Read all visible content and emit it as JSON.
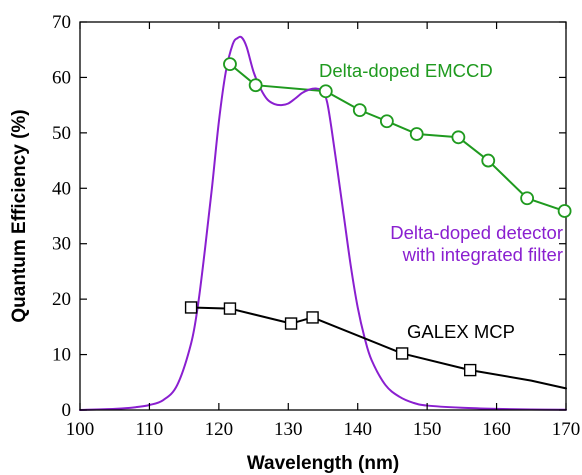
{
  "chart_data": {
    "type": "line",
    "xlabel": "Wavelength (nm)",
    "ylabel": "Quantum Efficiency (%)",
    "xlim": [
      100,
      170
    ],
    "ylim": [
      0,
      70
    ],
    "x_ticks": [
      100,
      110,
      120,
      130,
      140,
      150,
      160,
      170
    ],
    "y_ticks": [
      0,
      10,
      20,
      30,
      40,
      50,
      60,
      70
    ],
    "grid": false,
    "series": [
      {
        "name": "Delta-doped EMCCD",
        "label_lines": [
          "Delta-doped EMCCD"
        ],
        "color": "#1f9a1f",
        "marker": "circle",
        "x": [
          121.6,
          125.3,
          135.4,
          140.3,
          144.2,
          148.5,
          154.5,
          158.8,
          164.4,
          169.8
        ],
        "y": [
          62.4,
          58.6,
          57.5,
          54.1,
          52.1,
          49.8,
          49.2,
          45.0,
          38.2,
          35.9
        ]
      },
      {
        "name": "Delta-doped detector with integrated filter",
        "label_lines": [
          "Delta-doped detector",
          "with integrated filter"
        ],
        "color": "#8a1fd0",
        "marker": "none",
        "x": [
          100,
          105,
          108,
          110,
          112,
          114,
          116,
          117,
          118,
          119,
          120,
          121,
          122,
          122.7,
          123.3,
          124,
          125,
          126,
          127,
          128,
          129,
          130,
          131,
          132,
          133,
          134,
          135,
          135.6,
          136.2,
          137,
          138,
          139,
          140,
          141,
          142,
          144,
          146,
          148,
          150,
          155,
          160,
          165,
          170
        ],
        "y": [
          0,
          0.2,
          0.5,
          0.9,
          1.8,
          4.5,
          12,
          19,
          29,
          40,
          52,
          61,
          66,
          67.1,
          67.2,
          65.5,
          61,
          58,
          56,
          55.2,
          55,
          55.3,
          56.2,
          57.2,
          57.8,
          58,
          57.5,
          55.5,
          51,
          44,
          35,
          26,
          18.5,
          13,
          9,
          4.5,
          2.4,
          1.3,
          0.8,
          0.4,
          0.2,
          0.1,
          0.05
        ]
      },
      {
        "name": "GALEX MCP",
        "label_lines": [
          "GALEX MCP"
        ],
        "color": "#000000",
        "marker": "square",
        "x": [
          100,
          116,
          121.6,
          130.4,
          133.5,
          146.4,
          156.2,
          165,
          170
        ],
        "y": [
          null,
          18.5,
          18.3,
          15.6,
          16.7,
          10.2,
          7.2,
          5.3,
          3.9
        ],
        "marker_indices": [
          1,
          2,
          3,
          4,
          5,
          6
        ]
      }
    ]
  }
}
